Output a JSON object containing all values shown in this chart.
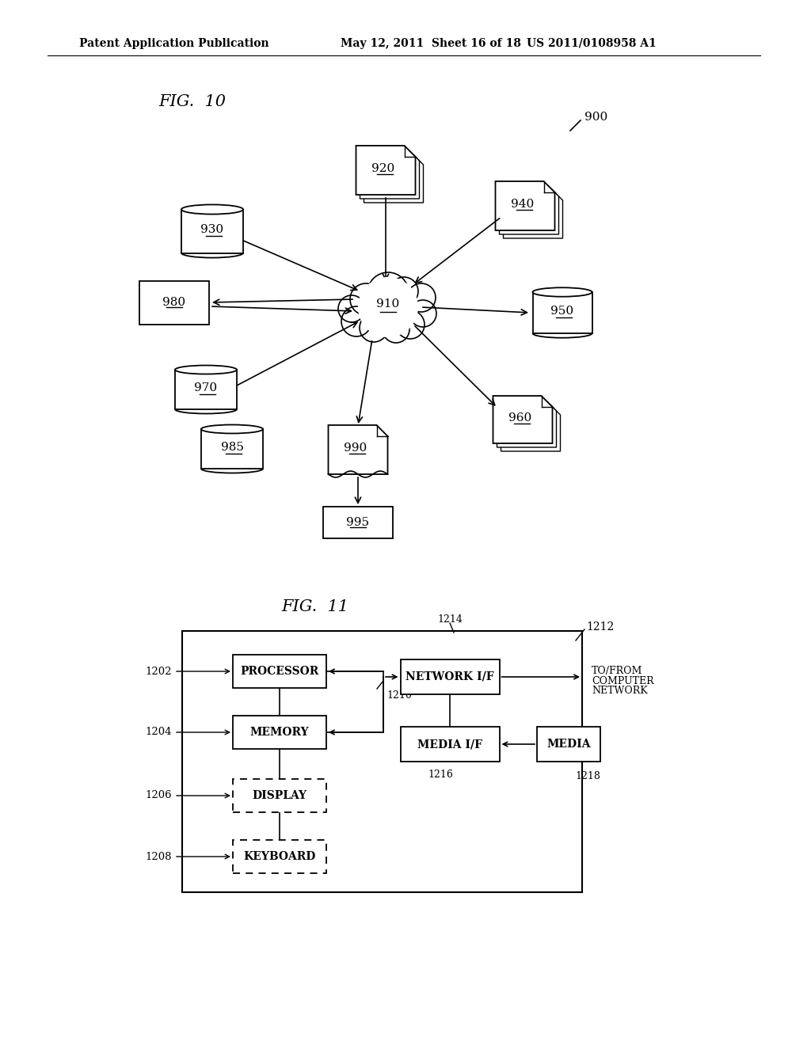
{
  "bg_color": "#ffffff",
  "header_left": "Patent Application Publication",
  "header_mid": "May 12, 2011  Sheet 16 of 18",
  "header_right": "US 2011/0108958 A1"
}
